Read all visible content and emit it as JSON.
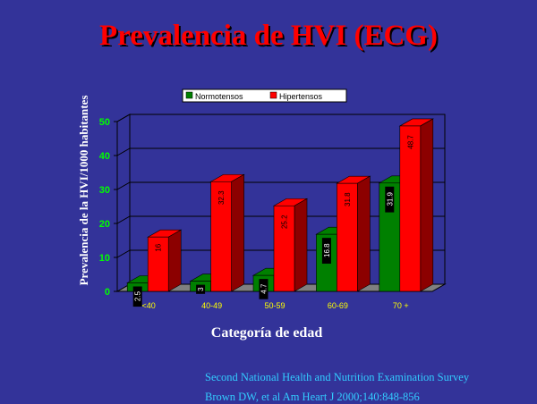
{
  "slide": {
    "title": "Prevalencia de HVI  (ECG)",
    "source_line1": "Second National Health and Nutrition Examination Survey",
    "source_line2": "Brown DW, et al Am Heart J 2000;140:848-856"
  },
  "colors": {
    "background": "#333399",
    "title": "#ff0000",
    "axis_text": "#00ff00",
    "category_text": "#ffff00",
    "source_text": "#33ccff",
    "plot_area": "#333399"
  },
  "chart_data": {
    "type": "bar",
    "style": "3d-clustered",
    "categories": [
      "<40",
      "40-49",
      "50-59",
      "60-69",
      "70 +"
    ],
    "series": [
      {
        "name": "Normotensos",
        "values": [
          2.5,
          3,
          4.7,
          16.8,
          31.9
        ],
        "labels": [
          "2.5",
          "3",
          "4.7",
          "16.8",
          "31.9"
        ],
        "color": "#008000"
      },
      {
        "name": "Hipertensos",
        "values": [
          16,
          32.3,
          25.2,
          31.8,
          48.7
        ],
        "labels": [
          "16",
          "32.3",
          "25.2",
          "31.8",
          "48.7"
        ],
        "color": "#ff0000"
      }
    ],
    "xlabel": "Categoría de edad",
    "ylabel": "Prevalencia de la HVI/1000 habitantes",
    "ylim": [
      0,
      50
    ],
    "yticks": [
      0,
      10,
      20,
      30,
      40,
      50
    ],
    "grid": true,
    "legend": "top-center"
  }
}
